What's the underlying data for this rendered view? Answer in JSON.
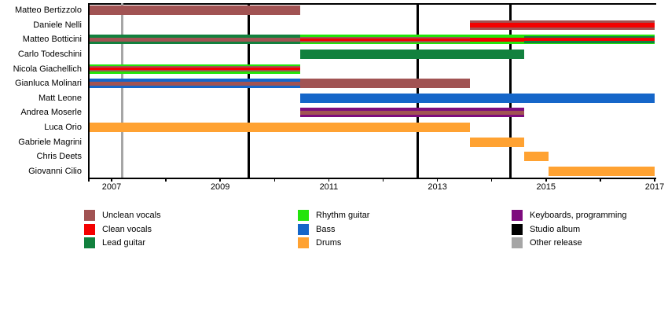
{
  "chart_data": {
    "type": "timeline",
    "description": "Band members timeline (gantt-style) with release markers",
    "x_axis": {
      "label_years": [
        2007,
        2009,
        2011,
        2013,
        2015,
        2017
      ],
      "tick_years": [
        2007,
        2008,
        2009,
        2010,
        2011,
        2012,
        2013,
        2014,
        2015,
        2016,
        2017
      ],
      "range_start": 2006.57,
      "range_end": 2017
    },
    "roles": {
      "unclean_vocals": "#a15353",
      "clean_vocals": "#f40000",
      "lead_guitar": "#12813e",
      "rhythm_guitar": "#23e40c",
      "bass": "#1566c9",
      "drums": "#ffa232",
      "keyboards_programming": "#7d0c7d",
      "studio_album": "#000000",
      "other_release": "#a6a6a6"
    },
    "members": [
      {
        "name": "Matteo Bertizzolo",
        "segments": [
          {
            "start": 2006.57,
            "end": 2010.47,
            "stripes": [
              [
                "unclean_vocals",
                12
              ]
            ]
          }
        ]
      },
      {
        "name": "Daniele Nelli",
        "segments": [
          {
            "start": 2013.6,
            "end": 2017,
            "stripes": [
              [
                "unclean_vocals",
                3
              ],
              [
                "clean_vocals",
                6
              ],
              [
                "unclean_vocals",
                3
              ]
            ]
          }
        ]
      },
      {
        "name": "Matteo Botticini",
        "segments": [
          {
            "start": 2006.57,
            "end": 2010.47,
            "stripes": [
              [
                "lead_guitar",
                3.5
              ],
              [
                "unclean_vocals",
                5
              ],
              [
                "lead_guitar",
                3.5
              ]
            ]
          },
          {
            "start": 2010.47,
            "end": 2013.6,
            "stripes": [
              [
                "rhythm_guitar",
                2.5
              ],
              [
                "unclean_vocals",
                2
              ],
              [
                "clean_vocals",
                3
              ],
              [
                "unclean_vocals",
                2
              ],
              [
                "rhythm_guitar",
                2.5
              ]
            ]
          },
          {
            "start": 2013.6,
            "end": 2014.6,
            "stripes": [
              [
                "rhythm_guitar",
                3.5
              ],
              [
                "clean_vocals",
                5
              ],
              [
                "rhythm_guitar",
                3.5
              ]
            ]
          },
          {
            "start": 2014.6,
            "end": 2017,
            "stripes": [
              [
                "rhythm_guitar",
                1.5
              ],
              [
                "lead_guitar",
                2.5
              ],
              [
                "clean_vocals",
                4
              ],
              [
                "lead_guitar",
                2.5
              ],
              [
                "rhythm_guitar",
                1.5
              ]
            ]
          }
        ]
      },
      {
        "name": "Carlo Todeschini",
        "segments": [
          {
            "start": 2010.47,
            "end": 2014.6,
            "stripes": [
              [
                "lead_guitar",
                12
              ]
            ]
          }
        ]
      },
      {
        "name": "Nicola Giachellich",
        "segments": [
          {
            "start": 2006.57,
            "end": 2010.47,
            "stripes": [
              [
                "rhythm_guitar",
                2.5
              ],
              [
                "unclean_vocals",
                2
              ],
              [
                "clean_vocals",
                3
              ],
              [
                "unclean_vocals",
                2
              ],
              [
                "rhythm_guitar",
                2.5
              ]
            ]
          }
        ]
      },
      {
        "name": "Gianluca Molinari",
        "segments": [
          {
            "start": 2006.57,
            "end": 2010.47,
            "stripes": [
              [
                "bass",
                3.5
              ],
              [
                "unclean_vocals",
                5
              ],
              [
                "bass",
                3.5
              ]
            ]
          },
          {
            "start": 2010.47,
            "end": 2013.6,
            "stripes": [
              [
                "unclean_vocals",
                12
              ]
            ]
          }
        ]
      },
      {
        "name": "Matt Leone",
        "segments": [
          {
            "start": 2010.47,
            "end": 2017,
            "stripes": [
              [
                "bass",
                12
              ]
            ]
          }
        ]
      },
      {
        "name": "Andrea Moserle",
        "segments": [
          {
            "start": 2010.47,
            "end": 2014.6,
            "stripes": [
              [
                "keyboards_programming",
                3.5
              ],
              [
                "unclean_vocals",
                5
              ],
              [
                "keyboards_programming",
                3.5
              ]
            ]
          }
        ]
      },
      {
        "name": "Luca Orio",
        "segments": [
          {
            "start": 2006.57,
            "end": 2013.6,
            "stripes": [
              [
                "drums",
                12
              ]
            ]
          }
        ]
      },
      {
        "name": "Gabriele Magrini",
        "segments": [
          {
            "start": 2013.6,
            "end": 2014.6,
            "stripes": [
              [
                "drums",
                12
              ]
            ]
          }
        ]
      },
      {
        "name": "Chris Deets",
        "segments": [
          {
            "start": 2014.6,
            "end": 2015.05,
            "stripes": [
              [
                "drums",
                12
              ]
            ]
          }
        ]
      },
      {
        "name": "Giovanni Cilio",
        "segments": [
          {
            "start": 2015.05,
            "end": 2017,
            "stripes": [
              [
                "drums",
                12
              ]
            ]
          }
        ]
      }
    ],
    "events": [
      {
        "year": 2007.2,
        "type": "other_release"
      },
      {
        "year": 2009.53,
        "type": "studio_album"
      },
      {
        "year": 2012.63,
        "type": "studio_album"
      },
      {
        "year": 2014.35,
        "type": "studio_album"
      }
    ],
    "legend": {
      "columns": [
        [
          {
            "label": "Unclean vocals",
            "role": "unclean_vocals"
          },
          {
            "label": "Clean vocals",
            "role": "clean_vocals"
          },
          {
            "label": "Lead guitar",
            "role": "lead_guitar"
          }
        ],
        [
          {
            "label": "Rhythm guitar",
            "role": "rhythm_guitar"
          },
          {
            "label": "Bass",
            "role": "bass"
          },
          {
            "label": "Drums",
            "role": "drums"
          }
        ],
        [
          {
            "label": "Keyboards, programming",
            "role": "keyboards_programming"
          },
          {
            "label": "Studio album",
            "role": "studio_album"
          },
          {
            "label": "Other release",
            "role": "other_release"
          }
        ]
      ]
    }
  }
}
